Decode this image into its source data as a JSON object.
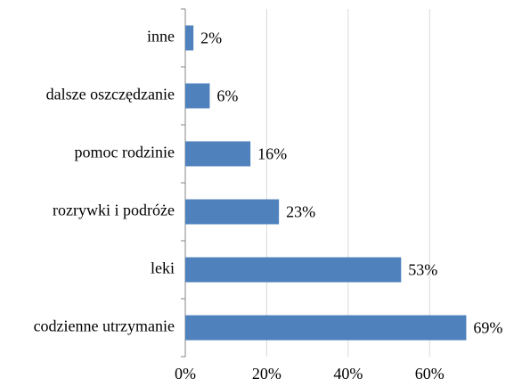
{
  "chart_data": {
    "type": "bar",
    "orientation": "horizontal",
    "categories": [
      "inne",
      "dalsze oszczędzanie",
      "pomoc rodzinie",
      "rozrywki i podróże",
      "leki",
      "codzienne utrzymanie"
    ],
    "values": [
      2,
      6,
      16,
      23,
      53,
      69
    ],
    "value_labels": [
      "2%",
      "6%",
      "16%",
      "23%",
      "53%",
      "69%"
    ],
    "color": "#4f81bd",
    "xlim": [
      0,
      70
    ],
    "xticks": [
      {
        "value": 0,
        "label": "0%"
      },
      {
        "value": 20,
        "label": "20%"
      },
      {
        "value": 40,
        "label": "40%"
      },
      {
        "value": 60,
        "label": "60%"
      }
    ],
    "grid": true
  }
}
